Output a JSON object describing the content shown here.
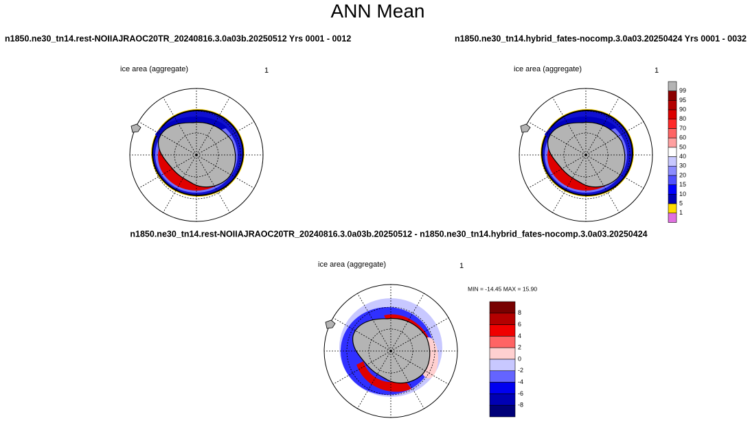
{
  "title": "ANN Mean",
  "panels": [
    {
      "header": "n1850.ne30_tn14.rest-NOIIAJRAOC20TR_20240816.3.0a03b.20250512  Yrs 0001 - 0012",
      "map_title": "ice area  (aggregate)",
      "map_number": "1"
    },
    {
      "header": "n1850.ne30_tn14.hybrid_fates-nocomp.3.0a03.20250424  Yrs 0001 - 0032",
      "map_title": "ice area  (aggregate)",
      "map_number": "1"
    },
    {
      "header": "n1850.ne30_tn14.rest-NOIIAJRAOC20TR_20240816.3.0a03b.20250512 - n1850.ne30_tn14.hybrid_fates-nocomp.3.0a03.20250424",
      "map_title": "ice area  (aggregate)",
      "map_number": "1",
      "min_max": "MIN = -14.45 MAX =  15.90"
    }
  ],
  "colorbar_top": {
    "labels": [
      99,
      95,
      90,
      80,
      70,
      60,
      50,
      40,
      30,
      20,
      15,
      10,
      5,
      1
    ],
    "colors": [
      "#b4b4b4",
      "#8b0000",
      "#b40000",
      "#dc0000",
      "#ff2828",
      "#ff6464",
      "#ffa0a0",
      "#ffffff",
      "#c8c8ff",
      "#8c8cff",
      "#5050ff",
      "#0000ff",
      "#0000b4",
      "#ffdc00",
      "#e070e0"
    ]
  },
  "colorbar_diff": {
    "labels": [
      8,
      6,
      4,
      2,
      0,
      -2,
      -4,
      -6,
      -8
    ],
    "colors": [
      "#780000",
      "#b40000",
      "#f00000",
      "#ff6464",
      "#ffd0d0",
      "#c8c8ff",
      "#6464ff",
      "#0000f0",
      "#0000b4",
      "#000078"
    ]
  }
}
